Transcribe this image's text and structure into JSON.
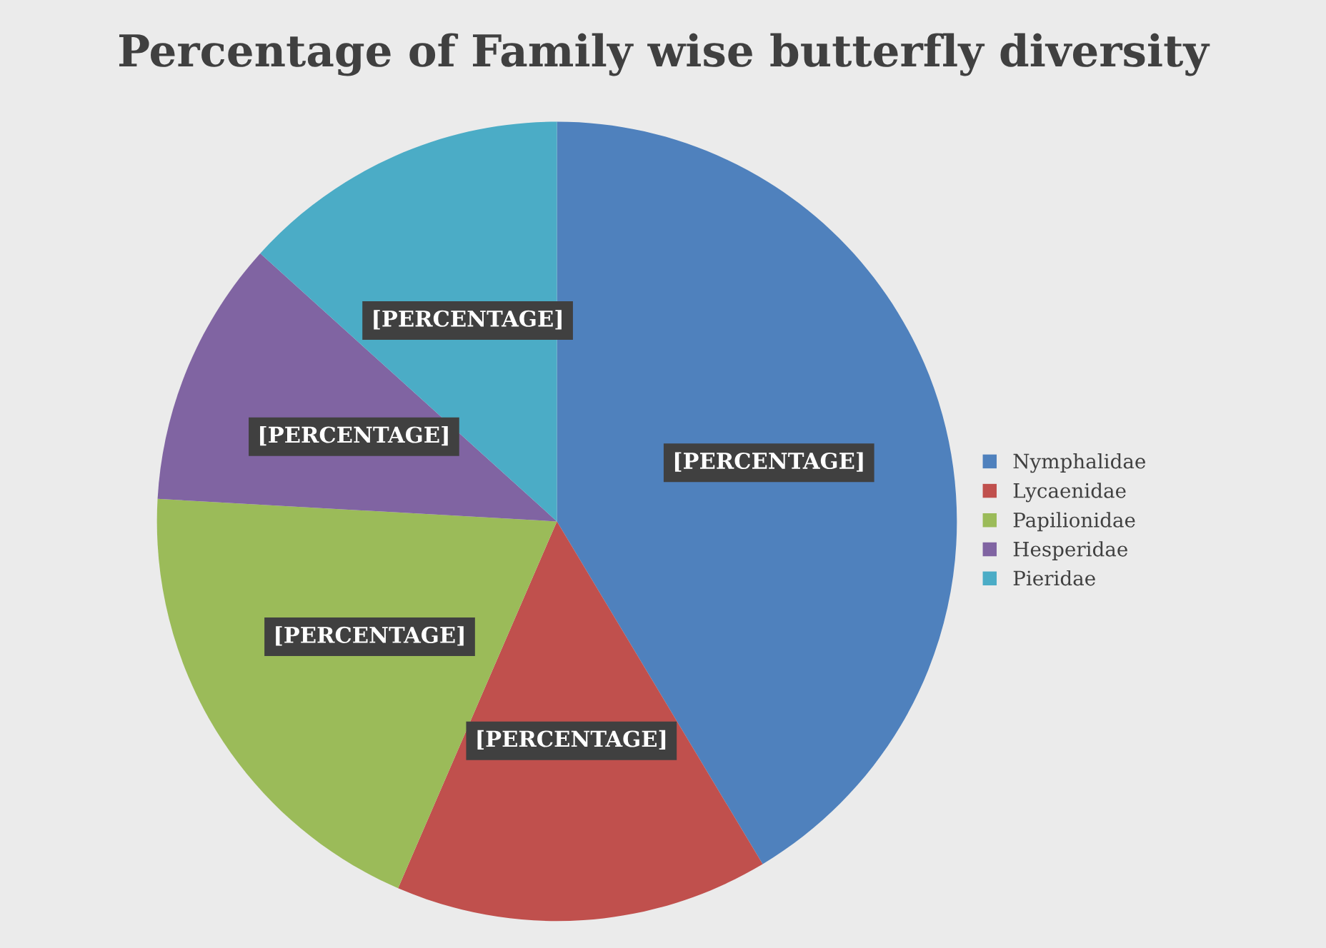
{
  "chart_data": {
    "type": "pie",
    "title": "Percentage of Family wise butterfly diversity",
    "categories": [
      "Nymphalidae",
      "Lycaenidae",
      "Papilionidae",
      "Hesperidae",
      "Pieridae"
    ],
    "values": [
      41.4,
      15.1,
      19.4,
      10.8,
      13.3
    ],
    "colors": [
      "#4f81bd",
      "#c0504d",
      "#9bbb59",
      "#8064a2",
      "#4bacc6"
    ],
    "value_labels": [
      "[PERCENTAGE]",
      "[PERCENTAGE]",
      "[PERCENTAGE]",
      "[PERCENTAGE]",
      "[PERCENTAGE]"
    ],
    "legend": "right"
  }
}
